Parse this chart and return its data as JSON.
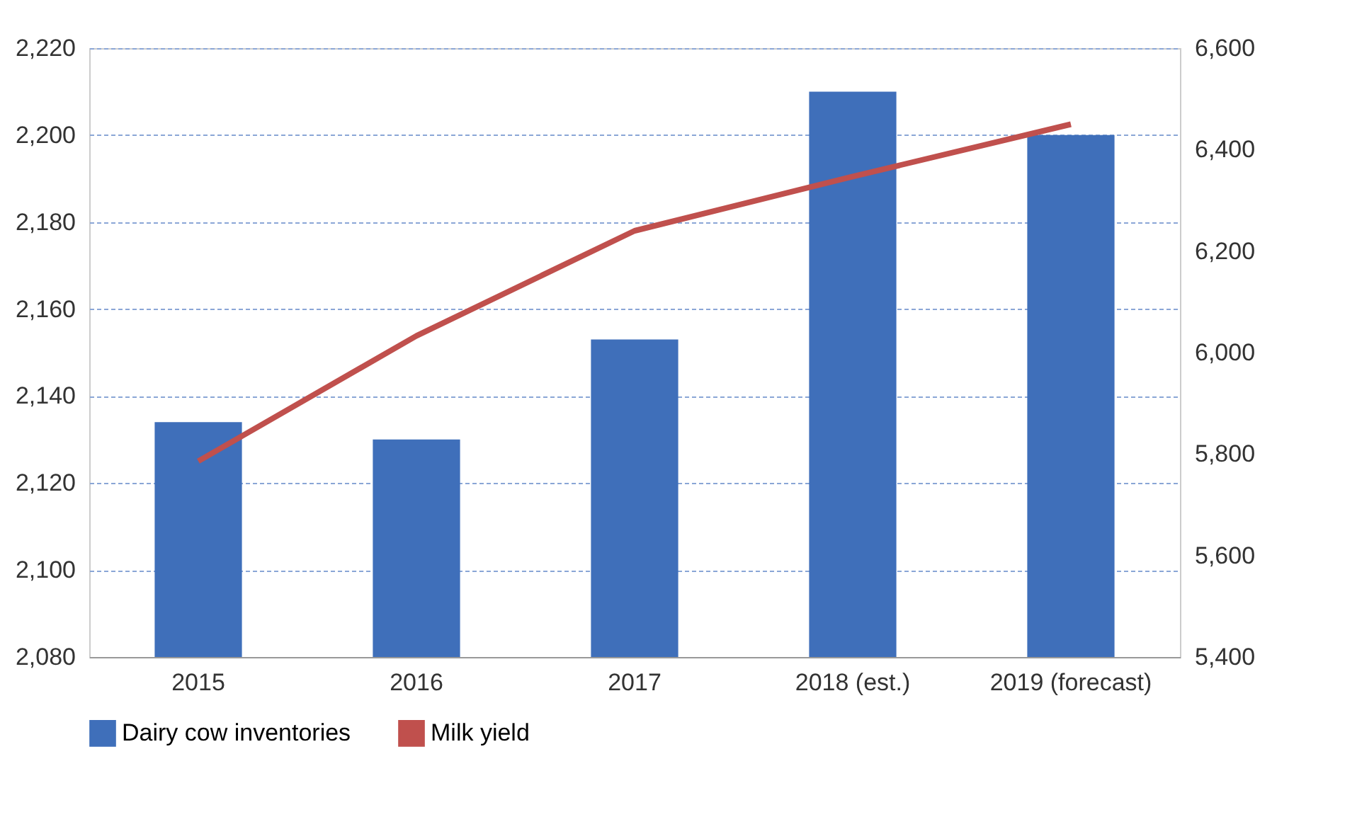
{
  "chart_data": {
    "type": "bar",
    "categories": [
      "2015",
      "2016",
      "2017",
      "2018 (est.)",
      "2019 (forecast)"
    ],
    "series": [
      {
        "name": "Dairy cow inventories",
        "color": "#3f6fba",
        "values": [
          2134,
          2130,
          2153,
          2210,
          2200
        ]
      },
      {
        "name": "Milk yield",
        "type": "line",
        "axis": "y2",
        "color": "#c0504d",
        "values": [
          5786,
          6033,
          6240,
          6347,
          6450
        ]
      }
    ],
    "ylim": [
      2080,
      2220
    ],
    "yticks": [
      {
        "value": 2080,
        "label": "2,080"
      },
      {
        "value": 2100,
        "label": "2,100"
      },
      {
        "value": 2120,
        "label": "2,120"
      },
      {
        "value": 2140,
        "label": "2,140"
      },
      {
        "value": 2160,
        "label": "2,160"
      },
      {
        "value": 2180,
        "label": "2,180"
      },
      {
        "value": 2200,
        "label": "2,200"
      },
      {
        "value": 2220,
        "label": "2,220"
      }
    ],
    "y2lim": [
      5400,
      6600
    ],
    "y2ticks": [
      {
        "value": 5400,
        "label": "5,400"
      },
      {
        "value": 5600,
        "label": "5,600"
      },
      {
        "value": 5800,
        "label": "5,800"
      },
      {
        "value": 6000,
        "label": "6,000"
      },
      {
        "value": 6200,
        "label": "6,200"
      },
      {
        "value": 6400,
        "label": "6,400"
      },
      {
        "value": 6600,
        "label": "6,600"
      }
    ],
    "grid": "y",
    "legend": "bottom",
    "marker": "none",
    "line_style": "solid"
  }
}
